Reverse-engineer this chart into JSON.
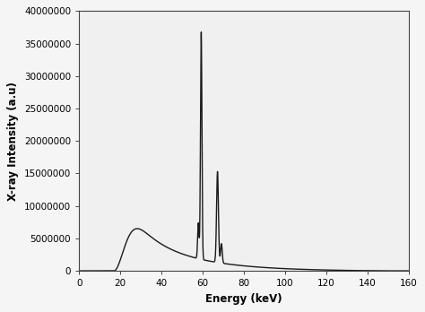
{
  "xlabel": "Energy (keV)",
  "ylabel": "X-ray Intensity (a.u)",
  "xlim": [
    0,
    160
  ],
  "ylim": [
    0,
    40000000
  ],
  "xticks": [
    0,
    20,
    40,
    60,
    80,
    100,
    120,
    140,
    160
  ],
  "yticks": [
    0,
    5000000,
    10000000,
    15000000,
    20000000,
    25000000,
    30000000,
    35000000,
    40000000
  ],
  "ytick_labels": [
    "0",
    "5000000",
    "10000000",
    "15000000",
    "20000000",
    "25000000",
    "30000000",
    "35000000",
    "40000000"
  ],
  "line_color": "#1a1a1a",
  "line_width": 1.0,
  "background_color": "#f5f5f5",
  "figsize": [
    4.74,
    3.48
  ],
  "dpi": 100,
  "ka_peak_x": 59.3,
  "ka_peak_y": 35000000,
  "kb_peak_x": 67.2,
  "kb_peak_y": 14000000,
  "ka2_peak_x": 57.9,
  "ka2_peak_y": 5500000,
  "bremsstrahlung_peak_x": 37,
  "bremsstrahlung_peak_y": 6500000,
  "e_start": 17.0,
  "e_end": 150.0,
  "E0": 150.0
}
